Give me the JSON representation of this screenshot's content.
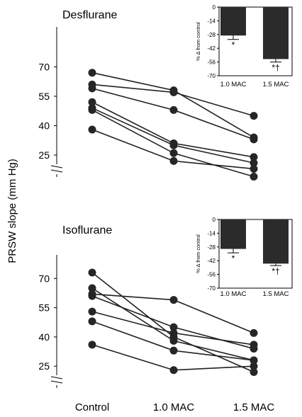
{
  "figure": {
    "ylabel": "PRSW slope (mm Hg)",
    "xlabels": [
      "Control",
      "1.0 MAC",
      "1.5 MAC"
    ]
  },
  "chart_data": [
    {
      "type": "line",
      "title": "Desflurane",
      "x": [
        "Control",
        "1.0 MAC",
        "1.5 MAC"
      ],
      "ylim": [
        16,
        77
      ],
      "yticks": [
        25,
        40,
        55,
        70
      ],
      "axis_break": true,
      "series": [
        {
          "values": [
            67,
            58,
            34
          ]
        },
        {
          "values": [
            61,
            57,
            45
          ]
        },
        {
          "values": [
            59,
            48,
            33
          ]
        },
        {
          "values": [
            52,
            31,
            24
          ]
        },
        {
          "values": [
            49,
            30,
            21
          ]
        },
        {
          "values": [
            48,
            26,
            14
          ]
        },
        {
          "values": [
            38,
            22,
            18
          ]
        }
      ]
    },
    {
      "type": "bar",
      "title": "",
      "inset_of": "Desflurane",
      "categories": [
        "1.0 MAC",
        "1.5 MAC"
      ],
      "values": [
        -29,
        -53
      ],
      "errors": [
        4,
        3
      ],
      "annotations": [
        "*",
        "*†"
      ],
      "ylabel": "%  Δ from control",
      "ylim": [
        -70,
        0
      ],
      "yticks": [
        0,
        -14,
        -28,
        -42,
        -56,
        -70
      ]
    },
    {
      "type": "line",
      "title": "Isoflurane",
      "x": [
        "Control",
        "1.0 MAC",
        "1.5 MAC"
      ],
      "ylim": [
        16,
        77
      ],
      "yticks": [
        25,
        40,
        55,
        70
      ],
      "axis_break": true,
      "series": [
        {
          "values": [
            73,
            40,
            22
          ]
        },
        {
          "values": [
            65,
            38,
            28
          ]
        },
        {
          "values": [
            62,
            59,
            42
          ]
        },
        {
          "values": [
            61,
            45,
            34
          ]
        },
        {
          "values": [
            53,
            42,
            36
          ]
        },
        {
          "values": [
            48,
            33,
            28
          ]
        },
        {
          "values": [
            36,
            23,
            25
          ]
        }
      ]
    },
    {
      "type": "bar",
      "title": "",
      "inset_of": "Isoflurane",
      "categories": [
        "1.0 MAC",
        "1.5 MAC"
      ],
      "values": [
        -30,
        -45
      ],
      "errors": [
        4,
        2
      ],
      "annotations": [
        "*",
        "*†"
      ],
      "ylabel": "%  Δ from control",
      "ylim": [
        -70,
        0
      ],
      "yticks": [
        0,
        -14,
        -28,
        -42,
        -56,
        -70
      ]
    }
  ]
}
